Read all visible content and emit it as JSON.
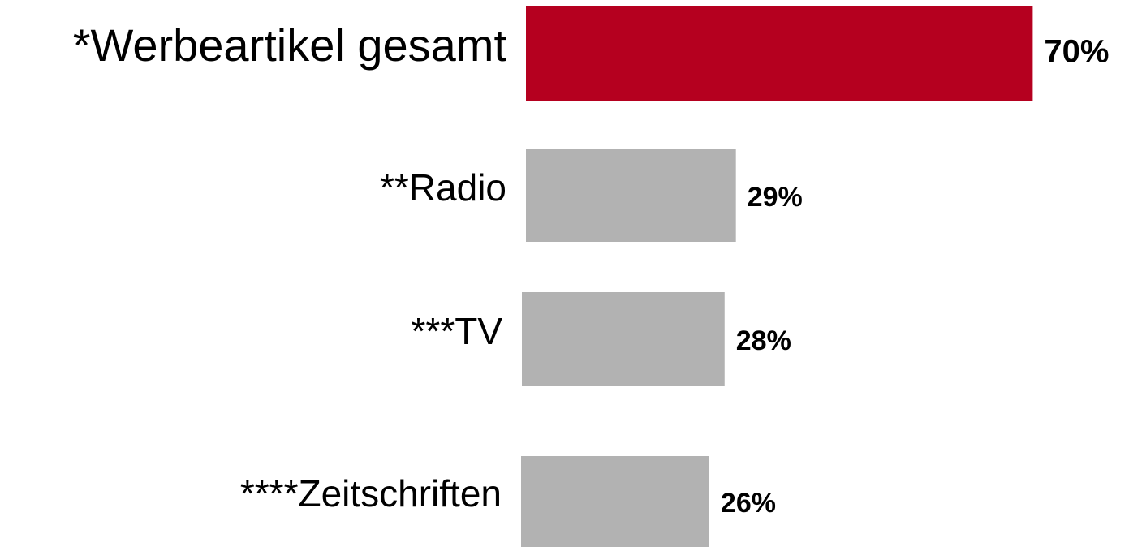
{
  "chart_data": {
    "type": "bar",
    "orientation": "horizontal",
    "categories": [
      "*Werbeartikel gesamt",
      "**Radio",
      "***TV",
      "****Zeitschriften"
    ],
    "values": [
      70,
      29,
      28,
      26
    ],
    "value_labels": [
      "70%",
      "29%",
      "28%",
      "26%"
    ],
    "colors": [
      "#b5001f",
      "#b2b2b2",
      "#b2b2b2",
      "#b2b2b2"
    ]
  }
}
